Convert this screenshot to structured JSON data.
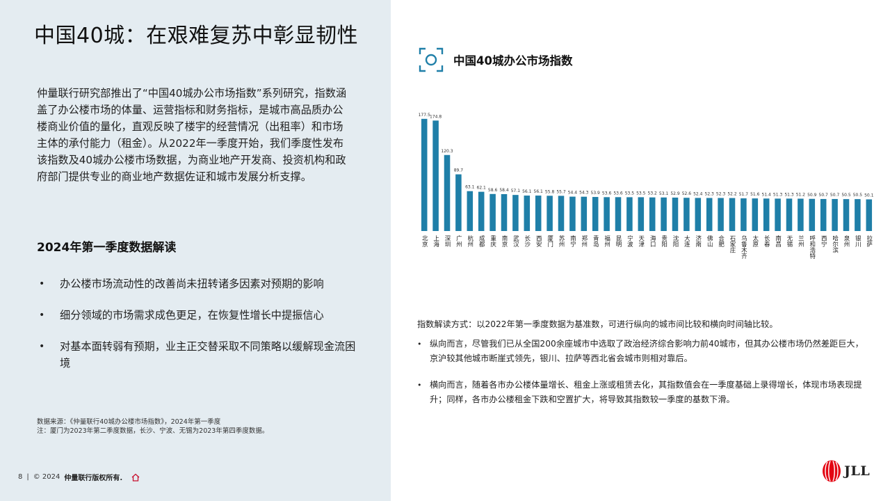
{
  "page": {
    "title": "中国40城：在艰难复苏中彰显韧性"
  },
  "intro": "仲量联行研究部推出了“中国40城办公市场指数”系列研究，指数涵盖了办公楼市场的体量、运营指标和财务指标，是城市高品质办公楼商业价值的量化，直观反映了楼宇的经营情况（出租率）和市场主体的承付能力（租金）。从2022年一季度开始，我们季度性发布该指数及40城办公楼市场数据，为商业地产开发商、投资机构和政府部门提供专业的商业地产数据佐证和城市发展分析支撑。",
  "section": {
    "heading": "2024年第一季度数据解读",
    "bullets": [
      "办公楼市场流动性的改善尚未扭转诸多因素对预期的影响",
      "细分领域的市场需求成色更足，在恢复性增长中提振信心",
      "对基本面转弱有预期，业主正交替采取不同策略以缓解现金流困境"
    ]
  },
  "source": {
    "line1": "数据来源：《仲量联行40城办公楼市场指数》，2024年第一季度",
    "line2": "注：厦门为2023年第二季度数据，长沙、宁波、无锡为2023年第四季度数据。"
  },
  "footer": {
    "page_number": "8",
    "separator": "|",
    "copyright_prefix": "© 2024",
    "copyright_owner": "仲量联行版权所有."
  },
  "chart_header": {
    "title": "中国40城办公市场指数"
  },
  "chart_data": {
    "type": "bar",
    "title": "中国40城办公市场指数",
    "categories": [
      "北京",
      "上海",
      "深圳",
      "广州",
      "杭州",
      "成都",
      "重庆",
      "南京",
      "武汉",
      "长沙",
      "西安",
      "厦门",
      "苏州",
      "南宁",
      "郑州",
      "青岛",
      "福州",
      "昆明",
      "宁波",
      "天津",
      "海口",
      "贵阳",
      "沈阳",
      "大连",
      "济南",
      "佛山",
      "合肥",
      "石家庄",
      "乌鲁木齐",
      "太原",
      "长春",
      "南昌",
      "无锡",
      "兰州",
      "呼和浩特",
      "西宁",
      "哈尔滨",
      "泉州",
      "银川",
      "拉萨"
    ],
    "values": [
      177.5,
      174.8,
      120.3,
      89.7,
      63.1,
      62.1,
      58.6,
      58.4,
      57.1,
      56.1,
      56.1,
      55.8,
      55.7,
      54.4,
      54.3,
      53.9,
      53.6,
      53.6,
      53.5,
      53.5,
      53.2,
      53.1,
      52.9,
      52.6,
      52.4,
      52.3,
      52.3,
      52.2,
      51.7,
      51.6,
      51.4,
      51.3,
      51.3,
      51.2,
      50.9,
      50.7,
      50.7,
      50.5,
      50.5,
      50.1
    ],
    "value_labels": [
      "177.5",
      "174.8",
      "120.3",
      "89.7",
      "63.1",
      "62.1",
      "58.6",
      "58.4",
      "57.1",
      "56.1",
      "56.1",
      "55.8",
      "55.7",
      "54.4",
      "54.3",
      "53.9",
      "53.6",
      "53.6",
      "53.5",
      "53.5",
      "53.2",
      "53.1",
      "52.9",
      "52.6",
      "52.4",
      "52.3",
      "52.3",
      "52.2",
      "51.7",
      "51.6",
      "51.4",
      "51.3",
      "51.3",
      "51.2",
      "50.9",
      "50.7",
      "50.7",
      "50.5",
      "50.5",
      "50.1"
    ],
    "ylim": [
      0,
      185
    ],
    "grid": false,
    "bar_color": "#1f7fa8",
    "xlabel": "",
    "ylabel": ""
  },
  "interpretation": {
    "intro": "指数解读方式：以2022年第一季度数据为基准数，可进行纵向的城市间比较和横向时间轴比较。",
    "points": [
      "纵向而言，尽管我们已从全国200余座城市中选取了政治经济综合影响力前40城市，但其办公楼市场仍然差距巨大，京沪较其他城市断崖式领先，银川、拉萨等西北省会城市则相对靠后。",
      "横向而言，随着各市办公楼体量增长、租金上涨或租赁去化，其指数值会在一季度基础上录得增长，体现市场表现提升；同样，各市办公楼租金下跌和空置扩大，将导致其指数较一季度的基数下滑。"
    ]
  },
  "logo": {
    "text": "JLL",
    "accent": "#e30613"
  },
  "colors": {
    "panel_bg": "#e4ecf1",
    "icon": "#1f7fa8"
  }
}
